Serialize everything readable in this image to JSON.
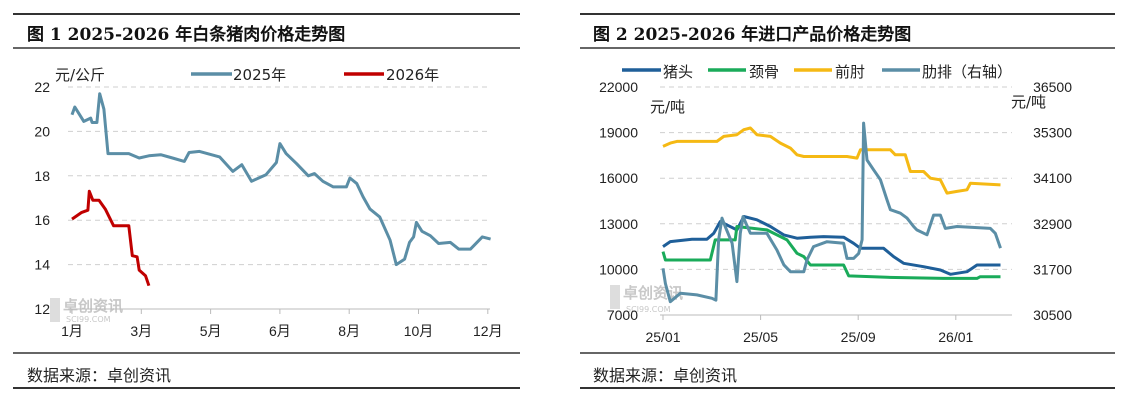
{
  "panels": [
    {
      "title": "图 1 2025-2026 年白条猪肉价格走势图",
      "source": "数据来源：卓创资讯",
      "watermark": "卓创资讯",
      "watermark_sub": "SCI99.COM"
    },
    {
      "title": "图 2 2025-2026 年进口产品价格走势图",
      "source": "数据来源：卓创资讯",
      "watermark": "卓创资讯",
      "watermark_sub": "SCI99.COM"
    }
  ],
  "chart_data": [
    {
      "type": "line",
      "title": "图 1 2025-2026 年白条猪肉价格走势图",
      "ylabel": "元/公斤",
      "ylim": [
        12,
        22
      ],
      "yticks": [
        12,
        14,
        16,
        18,
        20,
        22
      ],
      "xtick_labels": [
        "1月",
        "3月",
        "5月",
        "6月",
        "8月",
        "10月",
        "12月"
      ],
      "x_units": "tick index (0 = 1月 … 6 = 12月)",
      "grid": true,
      "legend_placement": "top",
      "series": [
        {
          "name": "2025年",
          "color": "#5b8ea6",
          "points": [
            [
              0,
              20.75
            ],
            [
              0.04,
              21.1
            ],
            [
              0.1,
              20.8
            ],
            [
              0.17,
              20.45
            ],
            [
              0.27,
              20.6
            ],
            [
              0.29,
              20.4
            ],
            [
              0.36,
              20.4
            ],
            [
              0.4,
              21.7
            ],
            [
              0.46,
              21.0
            ],
            [
              0.52,
              19.0
            ],
            [
              0.82,
              19.0
            ],
            [
              0.97,
              18.8
            ],
            [
              1.11,
              18.9
            ],
            [
              1.28,
              18.95
            ],
            [
              1.45,
              18.8
            ],
            [
              1.62,
              18.65
            ],
            [
              1.69,
              19.05
            ],
            [
              1.84,
              19.1
            ],
            [
              2.13,
              18.85
            ],
            [
              2.32,
              18.2
            ],
            [
              2.45,
              18.5
            ],
            [
              2.59,
              17.75
            ],
            [
              2.8,
              18.05
            ],
            [
              2.95,
              18.6
            ],
            [
              3.0,
              19.45
            ],
            [
              3.09,
              19.0
            ],
            [
              3.24,
              18.55
            ],
            [
              3.41,
              18.0
            ],
            [
              3.5,
              18.1
            ],
            [
              3.62,
              17.75
            ],
            [
              3.77,
              17.5
            ],
            [
              3.96,
              17.5
            ],
            [
              4.01,
              17.9
            ],
            [
              4.11,
              17.65
            ],
            [
              4.2,
              17.05
            ],
            [
              4.3,
              16.5
            ],
            [
              4.44,
              16.15
            ],
            [
              4.59,
              15.1
            ],
            [
              4.68,
              14.0
            ],
            [
              4.8,
              14.25
            ],
            [
              4.87,
              15.0
            ],
            [
              4.93,
              15.25
            ],
            [
              4.97,
              15.9
            ],
            [
              5.05,
              15.5
            ],
            [
              5.17,
              15.3
            ],
            [
              5.29,
              14.95
            ],
            [
              5.46,
              15.0
            ],
            [
              5.58,
              14.7
            ],
            [
              5.75,
              14.7
            ],
            [
              5.92,
              15.25
            ],
            [
              6.04,
              15.15
            ]
          ]
        },
        {
          "name": "2026年",
          "color": "#c00000",
          "points": [
            [
              0,
              16.05
            ],
            [
              0.14,
              16.35
            ],
            [
              0.23,
              16.45
            ],
            [
              0.25,
              17.3
            ],
            [
              0.3,
              16.9
            ],
            [
              0.39,
              16.9
            ],
            [
              0.48,
              16.5
            ],
            [
              0.6,
              15.75
            ],
            [
              0.82,
              15.75
            ],
            [
              0.87,
              14.4
            ],
            [
              0.94,
              14.35
            ],
            [
              0.97,
              13.75
            ],
            [
              1.06,
              13.5
            ],
            [
              1.11,
              13.05
            ]
          ]
        }
      ]
    },
    {
      "type": "line",
      "title": "图 2 2025-2026 年进口产品价格走势图",
      "ylabel": "元/吨",
      "ylabel_right": "元/吨",
      "ylim": [
        7000,
        22000
      ],
      "yticks": [
        7000,
        10000,
        13000,
        16000,
        19000,
        22000
      ],
      "ylim_right": [
        30500,
        36500
      ],
      "yticks_right": [
        30500,
        31700,
        32900,
        34100,
        35300,
        36500
      ],
      "xtick_labels": [
        "25/01",
        "25/05",
        "25/09",
        "26/01"
      ],
      "xtick_months": [
        0,
        4,
        8,
        12
      ],
      "x_units": "months since 2025-01",
      "grid": true,
      "legend_placement": "top",
      "series": [
        {
          "name": "猪头",
          "color": "#1f5f99",
          "axis": "left",
          "points": [
            [
              0,
              11500
            ],
            [
              0.3,
              11830
            ],
            [
              1.19,
              11980
            ],
            [
              1.8,
              11980
            ],
            [
              2.08,
              12380
            ],
            [
              2.35,
              13150
            ],
            [
              2.62,
              12930
            ],
            [
              3.03,
              12600
            ],
            [
              3.31,
              13480
            ],
            [
              3.85,
              13260
            ],
            [
              4.4,
              12820
            ],
            [
              4.95,
              12270
            ],
            [
              5.49,
              12050
            ],
            [
              6.04,
              12120
            ],
            [
              6.58,
              12160
            ],
            [
              7.4,
              12120
            ],
            [
              7.81,
              11720
            ],
            [
              8.09,
              11390
            ],
            [
              9.04,
              11390
            ],
            [
              9.45,
              10840
            ],
            [
              9.86,
              10400
            ],
            [
              10.68,
              10180
            ],
            [
              11.37,
              9960
            ],
            [
              11.78,
              9680
            ],
            [
              12.46,
              9850
            ],
            [
              12.87,
              10290
            ],
            [
              13.83,
              10290
            ]
          ]
        },
        {
          "name": "颈骨",
          "color": "#1aab5a",
          "axis": "left",
          "points": [
            [
              0,
              11170
            ],
            [
              0.1,
              10620
            ],
            [
              1.94,
              10620
            ],
            [
              2.14,
              11940
            ],
            [
              2.96,
              11940
            ],
            [
              3.03,
              12820
            ],
            [
              4.26,
              12600
            ],
            [
              5.08,
              11940
            ],
            [
              5.49,
              11060
            ],
            [
              5.77,
              10840
            ],
            [
              6.04,
              10290
            ],
            [
              7.4,
              10290
            ],
            [
              7.61,
              9570
            ],
            [
              9.18,
              9480
            ],
            [
              11.5,
              9410
            ],
            [
              12.87,
              9410
            ],
            [
              13.0,
              9520
            ],
            [
              13.83,
              9520
            ]
          ]
        },
        {
          "name": "前肘",
          "color": "#f5b914",
          "axis": "left",
          "points": [
            [
              0,
              18090
            ],
            [
              0.3,
              18310
            ],
            [
              0.57,
              18420
            ],
            [
              2.21,
              18420
            ],
            [
              2.49,
              18750
            ],
            [
              3.03,
              18860
            ],
            [
              3.31,
              19190
            ],
            [
              3.58,
              19300
            ],
            [
              3.85,
              18860
            ],
            [
              4.4,
              18750
            ],
            [
              4.81,
              18310
            ],
            [
              5.22,
              17980
            ],
            [
              5.49,
              17540
            ],
            [
              5.77,
              17430
            ],
            [
              7.54,
              17430
            ],
            [
              7.95,
              17320
            ],
            [
              8.09,
              17870
            ],
            [
              9.32,
              17870
            ],
            [
              9.52,
              17540
            ],
            [
              9.93,
              17540
            ],
            [
              10.14,
              16440
            ],
            [
              10.68,
              16440
            ],
            [
              10.96,
              16000
            ],
            [
              11.37,
              15890
            ],
            [
              11.64,
              15020
            ],
            [
              12.05,
              15130
            ],
            [
              12.46,
              15240
            ],
            [
              12.6,
              15670
            ],
            [
              13.83,
              15560
            ]
          ]
        },
        {
          "name": "肋排（右轴）",
          "color": "#5b8ea6",
          "axis": "right",
          "points": [
            [
              0,
              31730
            ],
            [
              0.1,
              31330
            ],
            [
              0.3,
              30850
            ],
            [
              0.71,
              31070
            ],
            [
              1.39,
              31030
            ],
            [
              2.01,
              30940
            ],
            [
              2.17,
              30890
            ],
            [
              2.28,
              32480
            ],
            [
              2.42,
              33050
            ],
            [
              2.55,
              32830
            ],
            [
              2.83,
              32390
            ],
            [
              3.03,
              31380
            ],
            [
              3.17,
              32650
            ],
            [
              3.28,
              33090
            ],
            [
              3.58,
              32650
            ],
            [
              4.26,
              32650
            ],
            [
              4.67,
              32210
            ],
            [
              4.95,
              31820
            ],
            [
              5.22,
              31640
            ],
            [
              5.77,
              31640
            ],
            [
              5.9,
              31950
            ],
            [
              6.17,
              32300
            ],
            [
              6.72,
              32430
            ],
            [
              7.4,
              32390
            ],
            [
              7.54,
              31990
            ],
            [
              7.81,
              31990
            ],
            [
              8.02,
              32120
            ],
            [
              8.16,
              32480
            ],
            [
              8.22,
              35550
            ],
            [
              8.36,
              34580
            ],
            [
              8.63,
              34320
            ],
            [
              8.91,
              34060
            ],
            [
              9.18,
              33530
            ],
            [
              9.32,
              33270
            ],
            [
              9.73,
              33180
            ],
            [
              10.0,
              33050
            ],
            [
              10.27,
              32830
            ],
            [
              10.4,
              32740
            ],
            [
              10.82,
              32610
            ],
            [
              11.09,
              33130
            ],
            [
              11.37,
              33130
            ],
            [
              11.57,
              32780
            ],
            [
              12.05,
              32830
            ],
            [
              13.42,
              32780
            ],
            [
              13.62,
              32650
            ],
            [
              13.83,
              32260
            ]
          ]
        }
      ]
    }
  ]
}
